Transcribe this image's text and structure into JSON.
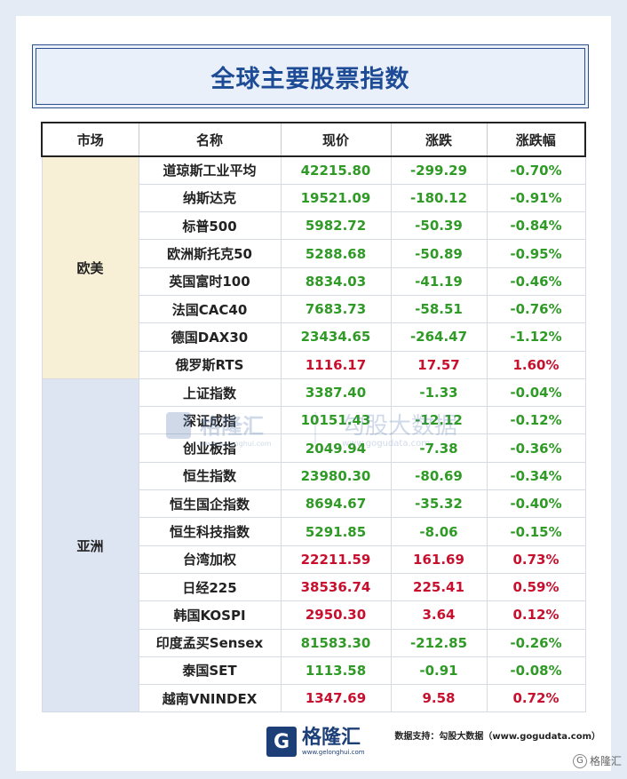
{
  "title": "全球主要股票指数",
  "columns": [
    "市场",
    "名称",
    "现价",
    "涨跌",
    "涨跌幅"
  ],
  "groups": [
    {
      "market": "欧美",
      "rows": [
        {
          "name": "道琼斯工业平均",
          "price": "42215.80",
          "change": "-299.29",
          "pct": "-0.70%",
          "dir": "down"
        },
        {
          "name": "纳斯达克",
          "price": "19521.09",
          "change": "-180.12",
          "pct": "-0.91%",
          "dir": "down"
        },
        {
          "name": "标普500",
          "price": "5982.72",
          "change": "-50.39",
          "pct": "-0.84%",
          "dir": "down"
        },
        {
          "name": "欧洲斯托克50",
          "price": "5288.68",
          "change": "-50.89",
          "pct": "-0.95%",
          "dir": "down"
        },
        {
          "name": "英国富时100",
          "price": "8834.03",
          "change": "-41.19",
          "pct": "-0.46%",
          "dir": "down"
        },
        {
          "name": "法国CAC40",
          "price": "7683.73",
          "change": "-58.51",
          "pct": "-0.76%",
          "dir": "down"
        },
        {
          "name": "德国DAX30",
          "price": "23434.65",
          "change": "-264.47",
          "pct": "-1.12%",
          "dir": "down"
        },
        {
          "name": "俄罗斯RTS",
          "price": "1116.17",
          "change": "17.57",
          "pct": "1.60%",
          "dir": "up"
        }
      ]
    },
    {
      "market": "亚洲",
      "rows": [
        {
          "name": "上证指数",
          "price": "3387.40",
          "change": "-1.33",
          "pct": "-0.04%",
          "dir": "down"
        },
        {
          "name": "深证成指",
          "price": "10151.43",
          "change": "-12.12",
          "pct": "-0.12%",
          "dir": "down"
        },
        {
          "name": "创业板指",
          "price": "2049.94",
          "change": "-7.38",
          "pct": "-0.36%",
          "dir": "down"
        },
        {
          "name": "恒生指数",
          "price": "23980.30",
          "change": "-80.69",
          "pct": "-0.34%",
          "dir": "down"
        },
        {
          "name": "恒生国企指数",
          "price": "8694.67",
          "change": "-35.32",
          "pct": "-0.40%",
          "dir": "down"
        },
        {
          "name": "恒生科技指数",
          "price": "5291.85",
          "change": "-8.06",
          "pct": "-0.15%",
          "dir": "down"
        },
        {
          "name": "台湾加权",
          "price": "22211.59",
          "change": "161.69",
          "pct": "0.73%",
          "dir": "up"
        },
        {
          "name": "日经225",
          "price": "38536.74",
          "change": "225.41",
          "pct": "0.59%",
          "dir": "up"
        },
        {
          "name": "韩国KOSPI",
          "price": "2950.30",
          "change": "3.64",
          "pct": "0.12%",
          "dir": "up"
        },
        {
          "name": "印度孟买Sensex",
          "price": "81583.30",
          "change": "-212.85",
          "pct": "-0.26%",
          "dir": "down"
        },
        {
          "name": "泰国SET",
          "price": "1113.58",
          "change": "-0.91",
          "pct": "-0.08%",
          "dir": "down"
        },
        {
          "name": "越南VNINDEX",
          "price": "1347.69",
          "change": "9.58",
          "pct": "0.72%",
          "dir": "up"
        }
      ]
    }
  ],
  "colors": {
    "up": "#c8102e",
    "down": "#2f9a26",
    "title": "#1d4b95"
  },
  "watermark": {
    "left": "格隆汇",
    "left_url": "www.gelonghui.com",
    "right": "勾股大数据",
    "right_url": "www.gogudata.com"
  },
  "footer": {
    "logo_letter": "G",
    "brand": "格隆汇",
    "brand_url": "www.gelonghui.com",
    "source": "数据支持：勾股大数据（www.gogudata.com）",
    "corner_badge": "格隆汇",
    "corner_badge_icon": "G"
  }
}
